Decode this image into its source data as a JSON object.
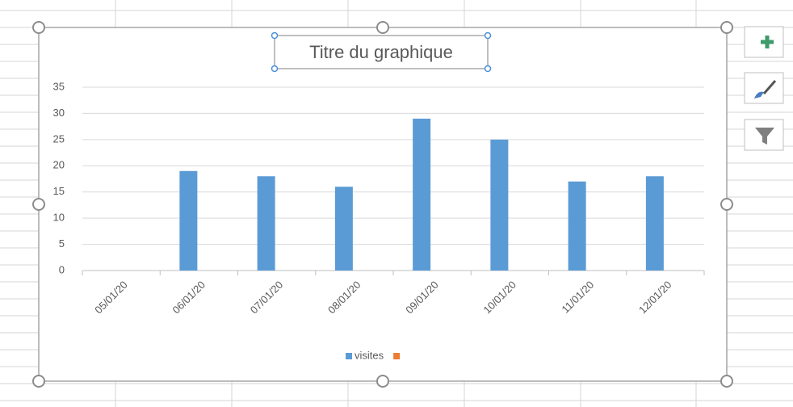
{
  "chart_data": {
    "type": "bar",
    "title": "Titre du graphique",
    "categories": [
      "05/01/20",
      "06/01/20",
      "07/01/20",
      "08/01/20",
      "09/01/20",
      "10/01/20",
      "11/01/20",
      "12/01/20"
    ],
    "series": [
      {
        "name": "visites",
        "color": "#5b9bd5",
        "values": [
          null,
          19,
          18,
          16,
          29,
          25,
          17,
          18
        ]
      },
      {
        "name": null,
        "color": "#ed7d31",
        "values": [
          null,
          null,
          null,
          null,
          null,
          null,
          null,
          null
        ]
      }
    ],
    "ylim": [
      0,
      35
    ],
    "yticks": [
      0,
      5,
      10,
      15,
      20,
      25,
      30,
      35
    ],
    "grid": true,
    "legend": "bottom"
  }
}
